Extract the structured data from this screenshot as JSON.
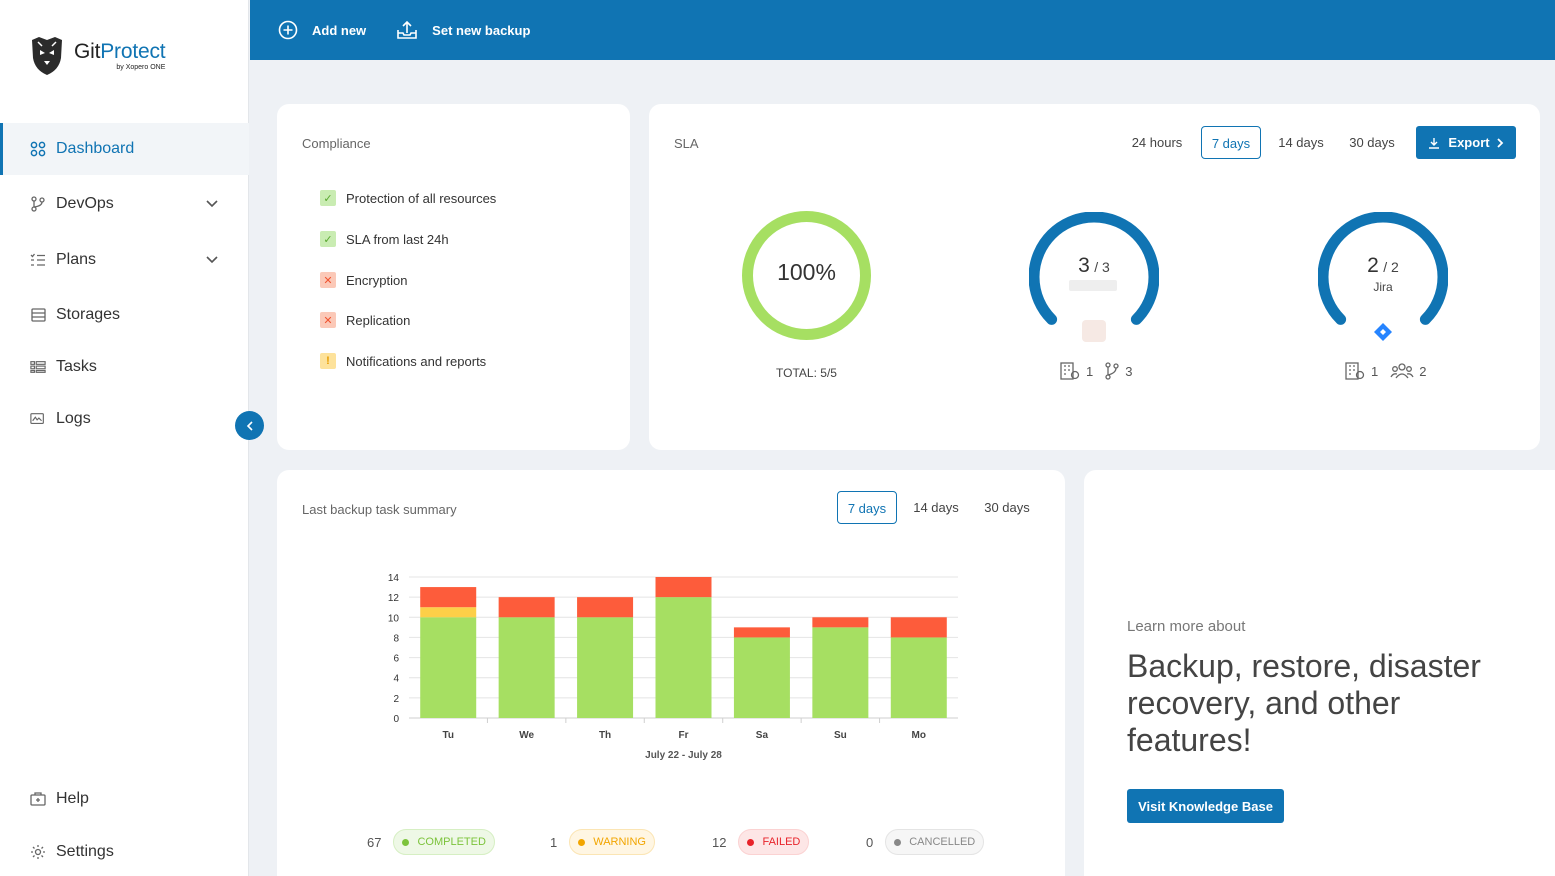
{
  "brand": {
    "name_prefix": "Git",
    "name_accent": "Protect",
    "sub": "by Xopero ONE"
  },
  "sidebar": {
    "items": [
      {
        "label": "Dashboard"
      },
      {
        "label": "DevOps"
      },
      {
        "label": "Plans"
      },
      {
        "label": "Storages"
      },
      {
        "label": "Tasks"
      },
      {
        "label": "Logs"
      }
    ],
    "bottom": [
      {
        "label": "Help"
      },
      {
        "label": "Settings"
      }
    ]
  },
  "topbar": {
    "add_new": "Add new",
    "set_backup": "Set new backup"
  },
  "compliance": {
    "title": "Compliance",
    "items": [
      {
        "label": "Protection of all resources",
        "status": "ok"
      },
      {
        "label": "SLA from last 24h",
        "status": "ok"
      },
      {
        "label": "Encryption",
        "status": "fail"
      },
      {
        "label": "Replication",
        "status": "fail"
      },
      {
        "label": "Notifications and reports",
        "status": "warning"
      }
    ]
  },
  "sla": {
    "title": "SLA",
    "ranges": [
      "24 hours",
      "7 days",
      "14 days",
      "30 days"
    ],
    "selected_range": "7 days",
    "export_label": "Export",
    "total": {
      "percent": "100%",
      "label": "TOTAL: 5/5",
      "fraction": 1.0,
      "color": "#a6df62"
    },
    "github": {
      "count": "3",
      "of": "/ 3",
      "orgs": "1",
      "repos": "3",
      "fraction": 1.0,
      "color": "#1074b3"
    },
    "jira": {
      "count": "2",
      "of": "/ 2",
      "name": "Jira",
      "orgs": "1",
      "users": "2",
      "fraction": 1.0,
      "color": "#1074b3"
    }
  },
  "summary": {
    "title": "Last backup task summary",
    "ranges": [
      "7 days",
      "14 days",
      "30 days"
    ],
    "selected_range": "7 days",
    "legend": [
      {
        "count": "67",
        "label": "COMPLETED",
        "color": "#7cc33b"
      },
      {
        "count": "1",
        "label": "WARNING",
        "color": "#f2a500"
      },
      {
        "count": "12",
        "label": "FAILED",
        "color": "#e8232a"
      },
      {
        "count": "0",
        "label": "CANCELLED",
        "color": "#888888"
      }
    ]
  },
  "chart_data": {
    "type": "bar",
    "stacked": true,
    "categories": [
      "Tu",
      "We",
      "Th",
      "Fr",
      "Sa",
      "Su",
      "Mo"
    ],
    "xlabel": "July 22 - July 28",
    "ylim": [
      0,
      14
    ],
    "yticks": [
      0,
      2,
      4,
      6,
      8,
      10,
      12,
      14
    ],
    "grid": true,
    "series": [
      {
        "name": "COMPLETED",
        "color": "#a6df62",
        "values": [
          10,
          10,
          10,
          12,
          8,
          9,
          8
        ]
      },
      {
        "name": "WARNING",
        "color": "#fdcf48",
        "values": [
          1,
          0,
          0,
          0,
          0,
          0,
          0
        ]
      },
      {
        "name": "FAILED",
        "color": "#fd5c3b",
        "values": [
          2,
          2,
          2,
          2,
          1,
          1,
          2
        ]
      }
    ]
  },
  "promo": {
    "eyebrow": "Learn more about",
    "headline_1": "Backup, restore, disaster",
    "headline_2": "recovery, and other",
    "headline_3": "features!",
    "cta": "Visit Knowledge Base"
  }
}
